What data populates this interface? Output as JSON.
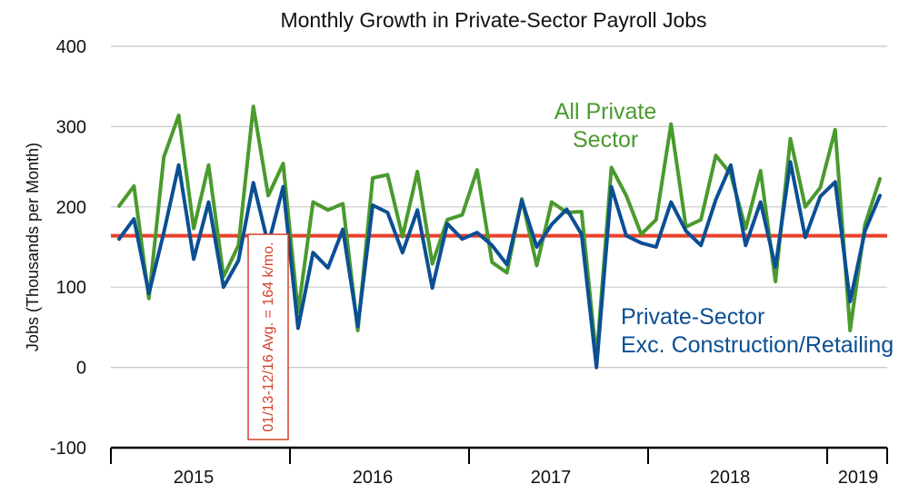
{
  "chart_data": {
    "type": "line",
    "title": "Monthly Growth in Private-Sector Payroll Jobs",
    "ylabel": "Jobs (Thousands per Month)",
    "xlabel": "",
    "ylim": [
      -100,
      400
    ],
    "yticks": [
      "400",
      "300",
      "200",
      "100",
      "0",
      "-100"
    ],
    "year_labels": [
      "2015",
      "2016",
      "2017",
      "2018",
      "2019"
    ],
    "grid": true,
    "colors": {
      "all_private": "#4a9a2e",
      "excl": "#0b4f93",
      "avg": "#e8412b",
      "grid": "#c8c8c8",
      "axis": "#000000"
    },
    "x": [
      "2015-01",
      "2015-02",
      "2015-03",
      "2015-04",
      "2015-05",
      "2015-06",
      "2015-07",
      "2015-08",
      "2015-09",
      "2015-10",
      "2015-11",
      "2015-12",
      "2016-01",
      "2016-02",
      "2016-03",
      "2016-04",
      "2016-05",
      "2016-06",
      "2016-07",
      "2016-08",
      "2016-09",
      "2016-10",
      "2016-11",
      "2016-12",
      "2017-01",
      "2017-02",
      "2017-03",
      "2017-04",
      "2017-05",
      "2017-06",
      "2017-07",
      "2017-08",
      "2017-09",
      "2017-10",
      "2017-11",
      "2017-12",
      "2018-01",
      "2018-02",
      "2018-03",
      "2018-04",
      "2018-05",
      "2018-06",
      "2018-07",
      "2018-08",
      "2018-09",
      "2018-10",
      "2018-11",
      "2018-12",
      "2019-01",
      "2019-02",
      "2019-03",
      "2019-04"
    ],
    "series": [
      {
        "name": "All Private Sector",
        "values": [
          201,
          226,
          86,
          262,
          314,
          173,
          252,
          113,
          152,
          325,
          214,
          254,
          69,
          206,
          196,
          204,
          46,
          236,
          240,
          163,
          244,
          129,
          184,
          190,
          246,
          131,
          118,
          210,
          127,
          206,
          193,
          194,
          11,
          249,
          214,
          166,
          184,
          303,
          175,
          184,
          264,
          241,
          173,
          245,
          107,
          285,
          200,
          224,
          296,
          46,
          178,
          235
        ]
      },
      {
        "name": "Private-Sector Exc. Construction/Retailing",
        "values": [
          160,
          185,
          92,
          168,
          252,
          135,
          206,
          100,
          133,
          230,
          153,
          225,
          49,
          143,
          124,
          172,
          51,
          202,
          193,
          143,
          196,
          99,
          179,
          160,
          168,
          152,
          128,
          208,
          150,
          178,
          197,
          166,
          0,
          225,
          164,
          155,
          150,
          206,
          170,
          152,
          209,
          252,
          152,
          206,
          125,
          256,
          162,
          213,
          231,
          82,
          170,
          214
        ]
      }
    ],
    "reference_line": {
      "value": 164
    },
    "annotations": {
      "all_private_line1": "All Private",
      "all_private_line2": "Sector",
      "excl_line1": "Private-Sector",
      "excl_line2": "Exc. Construction/Retailing",
      "avg_box": "01/13-12/16 Avg. = 164 k/mo."
    }
  }
}
